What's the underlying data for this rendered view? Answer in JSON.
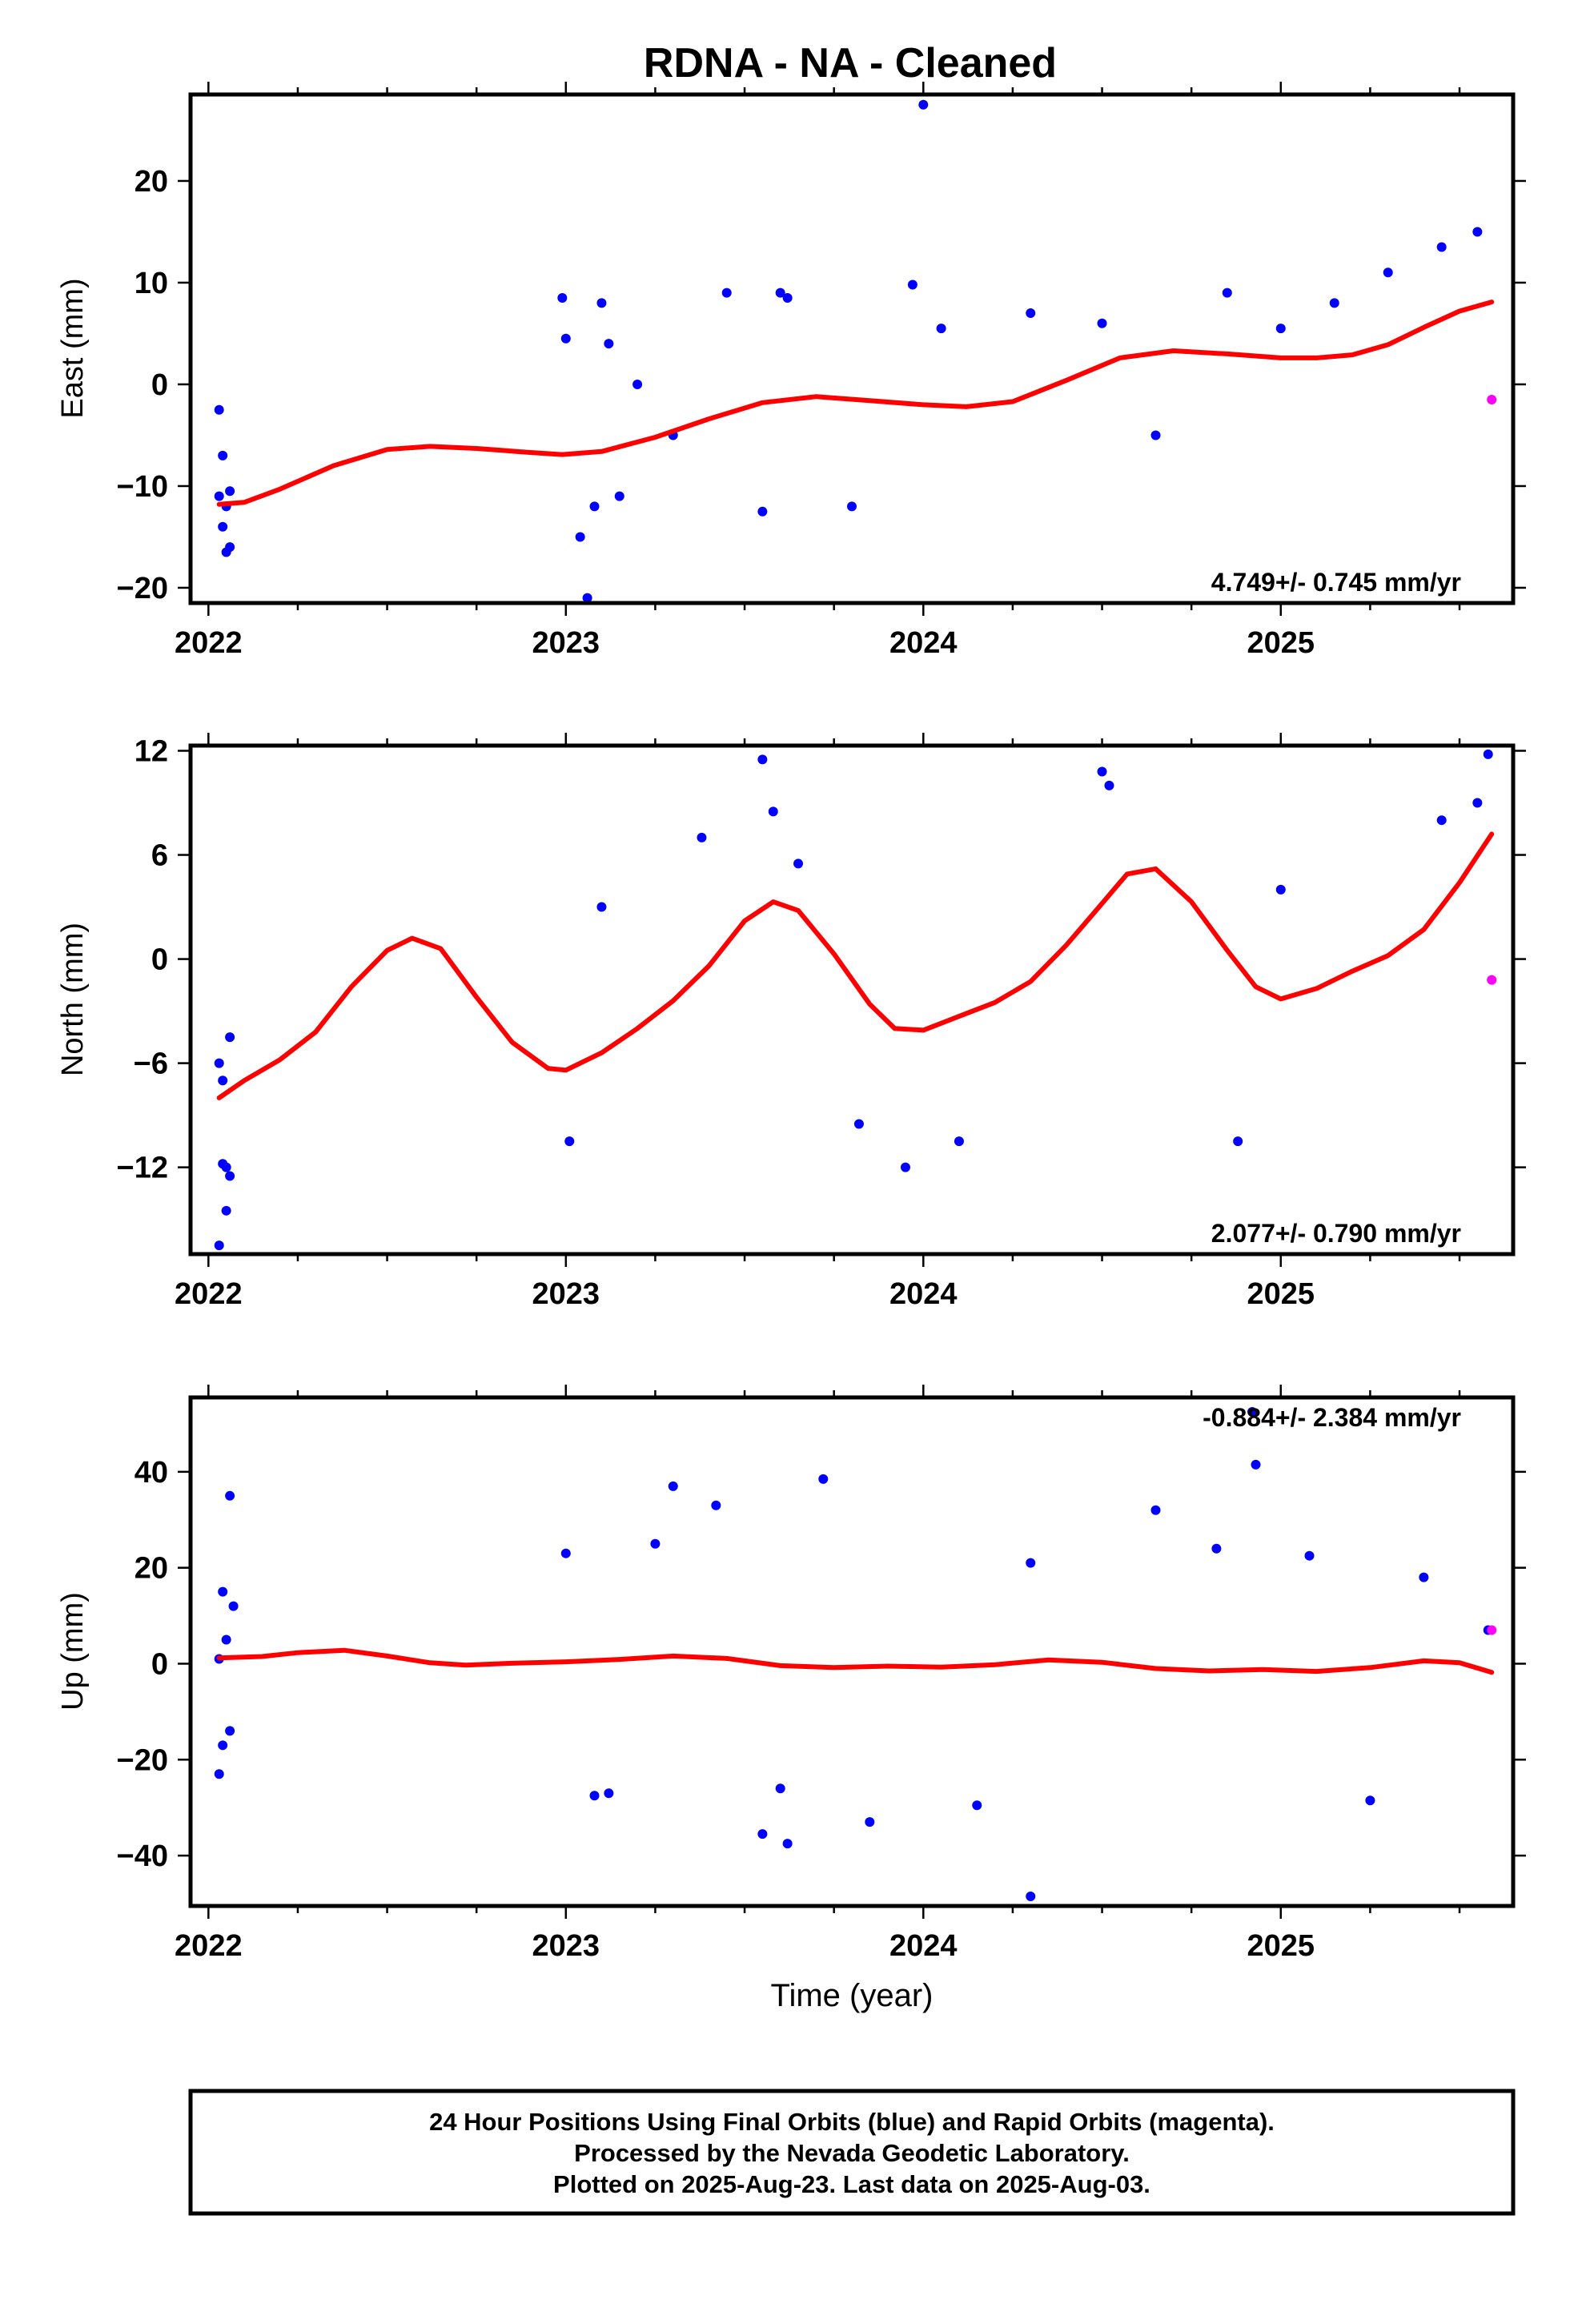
{
  "title": "RDNA  - NA - Cleaned",
  "x_label": "Time (year)",
  "footer": {
    "line1": "24 Hour Positions Using Final Orbits (blue) and Rapid Orbits (magenta).",
    "line2": "Processed by the Nevada Geodetic Laboratory.",
    "line3": "Plotted on 2025-Aug-23. Last data on 2025-Aug-03."
  },
  "colors": {
    "final_orbits": "#0000ff",
    "rapid_orbits": "#ff00ff",
    "fit_curve": "#ff0000"
  },
  "chart_data": [
    {
      "type": "scatter",
      "panel": "east",
      "ylabel": "East (mm)",
      "xlim": [
        2021.95,
        2025.65
      ],
      "ylim": [
        -21.5,
        28.5
      ],
      "x_ticks": [
        2022,
        2023,
        2024,
        2025
      ],
      "x_tick_labels": [
        "2022",
        "2023",
        "2024",
        "2025"
      ],
      "y_ticks": [
        -20,
        -10,
        0,
        10,
        20
      ],
      "y_tick_labels": [
        "−20",
        "−10",
        "0",
        "10",
        "20"
      ],
      "rate_text": "4.749+/- 0.745 mm/yr",
      "series": [
        {
          "kind": "final",
          "x": [
            2022.03,
            2022.03,
            2022.04,
            2022.04,
            2022.05,
            2022.05,
            2022.06,
            2022.06,
            2022.99,
            2023.0,
            2023.04,
            2023.06,
            2023.08,
            2023.1,
            2023.12,
            2023.15,
            2023.2,
            2023.3,
            2023.45,
            2023.55,
            2023.6,
            2023.62,
            2023.8,
            2023.97,
            2024.0,
            2024.05,
            2024.3,
            2024.5,
            2024.65,
            2024.85,
            2025.0,
            2025.15,
            2025.3,
            2025.45,
            2025.55
          ],
          "y": [
            -2.5,
            -11,
            -7,
            -14,
            -16.5,
            -12,
            -16,
            -10.5,
            8.5,
            4.5,
            -15,
            -21,
            -12,
            8,
            4,
            -11,
            0,
            -5,
            9,
            -12.5,
            9,
            8.5,
            -12,
            9.8,
            27.5,
            5.5,
            7,
            6,
            -5,
            9,
            5.5,
            8,
            11,
            13.5,
            15
          ]
        },
        {
          "kind": "rapid",
          "x": [
            2025.59
          ],
          "y": [
            -1.5
          ]
        },
        {
          "kind": "fit",
          "x": [
            2022.03,
            2022.1,
            2022.2,
            2022.35,
            2022.5,
            2022.62,
            2022.75,
            2022.9,
            2022.99,
            2023.1,
            2023.25,
            2023.4,
            2023.55,
            2023.7,
            2023.85,
            2024.0,
            2024.12,
            2024.25,
            2024.4,
            2024.55,
            2024.7,
            2024.85,
            2025.0,
            2025.1,
            2025.2,
            2025.3,
            2025.4,
            2025.5,
            2025.59
          ],
          "y": [
            -11.8,
            -11.6,
            -10.3,
            -8.0,
            -6.4,
            -6.1,
            -6.3,
            -6.7,
            -6.9,
            -6.6,
            -5.2,
            -3.4,
            -1.8,
            -1.2,
            -1.6,
            -2.0,
            -2.2,
            -1.7,
            0.4,
            2.6,
            3.3,
            3.0,
            2.6,
            2.6,
            2.9,
            3.9,
            5.6,
            7.2,
            8.1
          ]
        }
      ]
    },
    {
      "type": "scatter",
      "panel": "north",
      "ylabel": "North (mm)",
      "xlim": [
        2021.95,
        2025.65
      ],
      "ylim": [
        -17,
        12.3
      ],
      "x_ticks": [
        2022,
        2023,
        2024,
        2025
      ],
      "x_tick_labels": [
        "2022",
        "2023",
        "2024",
        "2025"
      ],
      "y_ticks": [
        -12,
        -6,
        0,
        6,
        12
      ],
      "y_tick_labels": [
        "−12",
        "−6",
        "0",
        "6",
        "12"
      ],
      "rate_text": "2.077+/- 0.790 mm/yr",
      "series": [
        {
          "kind": "final",
          "x": [
            2022.03,
            2022.03,
            2022.04,
            2022.04,
            2022.05,
            2022.05,
            2022.06,
            2022.06,
            2023.01,
            2023.1,
            2023.38,
            2023.55,
            2023.58,
            2023.65,
            2023.82,
            2023.95,
            2024.1,
            2024.5,
            2024.52,
            2024.88,
            2025.0,
            2025.45,
            2025.55,
            2025.58
          ],
          "y": [
            -6,
            -16.5,
            -7,
            -11.8,
            -14.5,
            -12,
            -4.5,
            -12.5,
            -10.5,
            3,
            7,
            11.5,
            8.5,
            5.5,
            -9.5,
            -12,
            -10.5,
            10.8,
            10,
            -10.5,
            4,
            8,
            9,
            11.8
          ]
        },
        {
          "kind": "rapid",
          "x": [
            2025.59
          ],
          "y": [
            -1.2
          ]
        },
        {
          "kind": "fit",
          "x": [
            2022.03,
            2022.1,
            2022.2,
            2022.3,
            2022.4,
            2022.5,
            2022.57,
            2022.65,
            2022.75,
            2022.85,
            2022.95,
            2023.0,
            2023.1,
            2023.2,
            2023.3,
            2023.4,
            2023.5,
            2023.58,
            2023.65,
            2023.75,
            2023.85,
            2023.92,
            2024.0,
            2024.1,
            2024.2,
            2024.3,
            2024.4,
            2024.5,
            2024.57,
            2024.65,
            2024.75,
            2024.85,
            2024.93,
            2025.0,
            2025.1,
            2025.2,
            2025.3,
            2025.4,
            2025.5,
            2025.59
          ],
          "y": [
            -8.0,
            -7.0,
            -5.8,
            -4.2,
            -1.6,
            0.5,
            1.2,
            0.6,
            -2.2,
            -4.8,
            -6.3,
            -6.4,
            -5.4,
            -4.0,
            -2.4,
            -0.4,
            2.2,
            3.3,
            2.8,
            0.3,
            -2.6,
            -4.0,
            -4.1,
            -3.3,
            -2.5,
            -1.3,
            0.8,
            3.2,
            4.9,
            5.2,
            3.3,
            0.5,
            -1.6,
            -2.3,
            -1.7,
            -0.7,
            0.2,
            1.7,
            4.4,
            7.2
          ]
        }
      ]
    },
    {
      "type": "scatter",
      "panel": "up",
      "ylabel": "Up (mm)",
      "xlim": [
        2021.95,
        2025.65
      ],
      "ylim": [
        -50.5,
        55.5
      ],
      "x_ticks": [
        2022,
        2023,
        2024,
        2025
      ],
      "x_tick_labels": [
        "2022",
        "2023",
        "2024",
        "2025"
      ],
      "y_ticks": [
        -40,
        -20,
        0,
        20,
        40
      ],
      "y_tick_labels": [
        "−40",
        "−20",
        "0",
        "20",
        "40"
      ],
      "rate_text": "-0.884+/- 2.384 mm/yr",
      "series": [
        {
          "kind": "final",
          "x": [
            2022.03,
            2022.03,
            2022.04,
            2022.04,
            2022.05,
            2022.06,
            2022.06,
            2022.07,
            2023.0,
            2023.08,
            2023.12,
            2023.25,
            2023.3,
            2023.42,
            2023.55,
            2023.6,
            2023.62,
            2023.72,
            2023.85,
            2024.15,
            2024.3,
            2024.3,
            2024.65,
            2024.82,
            2024.92,
            2024.93,
            2025.08,
            2025.25,
            2025.4,
            2025.58
          ],
          "y": [
            1,
            -23,
            15,
            -17,
            5,
            -14,
            35,
            12,
            23,
            -27.5,
            -27,
            25,
            37,
            33,
            -35.5,
            -26,
            -37.5,
            38.5,
            -33,
            -29.5,
            -48.5,
            21,
            32,
            24,
            52.5,
            41.5,
            22.5,
            -28.5,
            18,
            7
          ]
        },
        {
          "kind": "rapid",
          "x": [
            2025.59
          ],
          "y": [
            7
          ]
        },
        {
          "kind": "fit",
          "x": [
            2022.03,
            2022.15,
            2022.25,
            2022.38,
            2022.5,
            2022.62,
            2022.72,
            2022.85,
            2023.0,
            2023.15,
            2023.3,
            2023.45,
            2023.6,
            2023.75,
            2023.9,
            2024.05,
            2024.2,
            2024.35,
            2024.5,
            2024.65,
            2024.8,
            2024.95,
            2025.1,
            2025.25,
            2025.4,
            2025.5,
            2025.59
          ],
          "y": [
            1.2,
            1.5,
            2.3,
            2.8,
            1.6,
            0.2,
            -0.3,
            0.1,
            0.4,
            0.9,
            1.6,
            1.1,
            -0.4,
            -0.8,
            -0.5,
            -0.7,
            -0.2,
            0.8,
            0.3,
            -1.0,
            -1.5,
            -1.2,
            -1.6,
            -0.8,
            0.6,
            0.2,
            -1.8
          ]
        }
      ]
    }
  ]
}
